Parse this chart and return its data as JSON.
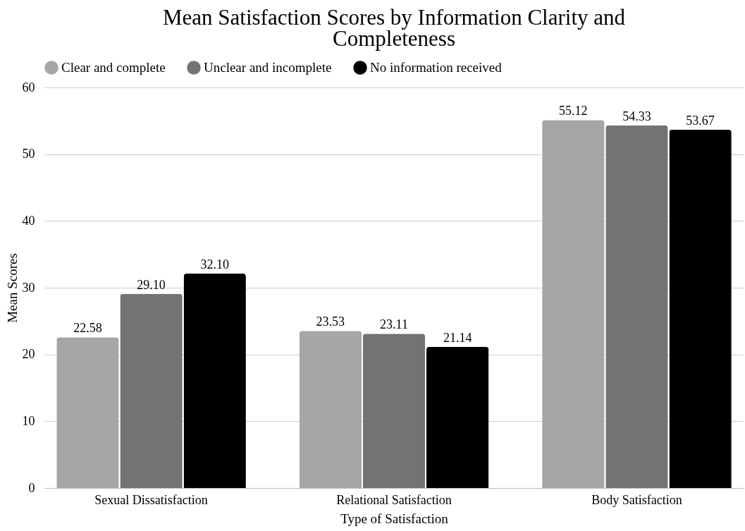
{
  "chart_data": {
    "type": "bar",
    "title": "Mean Satisfaction Scores by Information Clarity and Completeness",
    "xlabel": "Type of Satisfaction",
    "ylabel": "Mean Scores",
    "categories": [
      "Sexual Dissatisfaction",
      "Relational Satisfaction",
      "Body Satisfaction"
    ],
    "series": [
      {
        "name": "Clear and complete",
        "color": "#a6a6a6",
        "values": [
          22.58,
          23.53,
          55.12
        ],
        "value_labels": [
          "22.58",
          "23.53",
          "55.12"
        ]
      },
      {
        "name": "Unclear and incomplete",
        "color": "#737373",
        "values": [
          29.1,
          23.11,
          54.33
        ],
        "value_labels": [
          "29.10",
          "23.11",
          "54.33"
        ]
      },
      {
        "name": "No information received",
        "color": "#000000",
        "values": [
          32.1,
          21.14,
          53.67
        ],
        "value_labels": [
          "32.10",
          "21.14",
          "53.67"
        ]
      }
    ],
    "ylim": [
      0,
      60
    ],
    "yticks": [
      0,
      10,
      20,
      30,
      40,
      50,
      60
    ],
    "grid": "y",
    "legend": "top"
  }
}
